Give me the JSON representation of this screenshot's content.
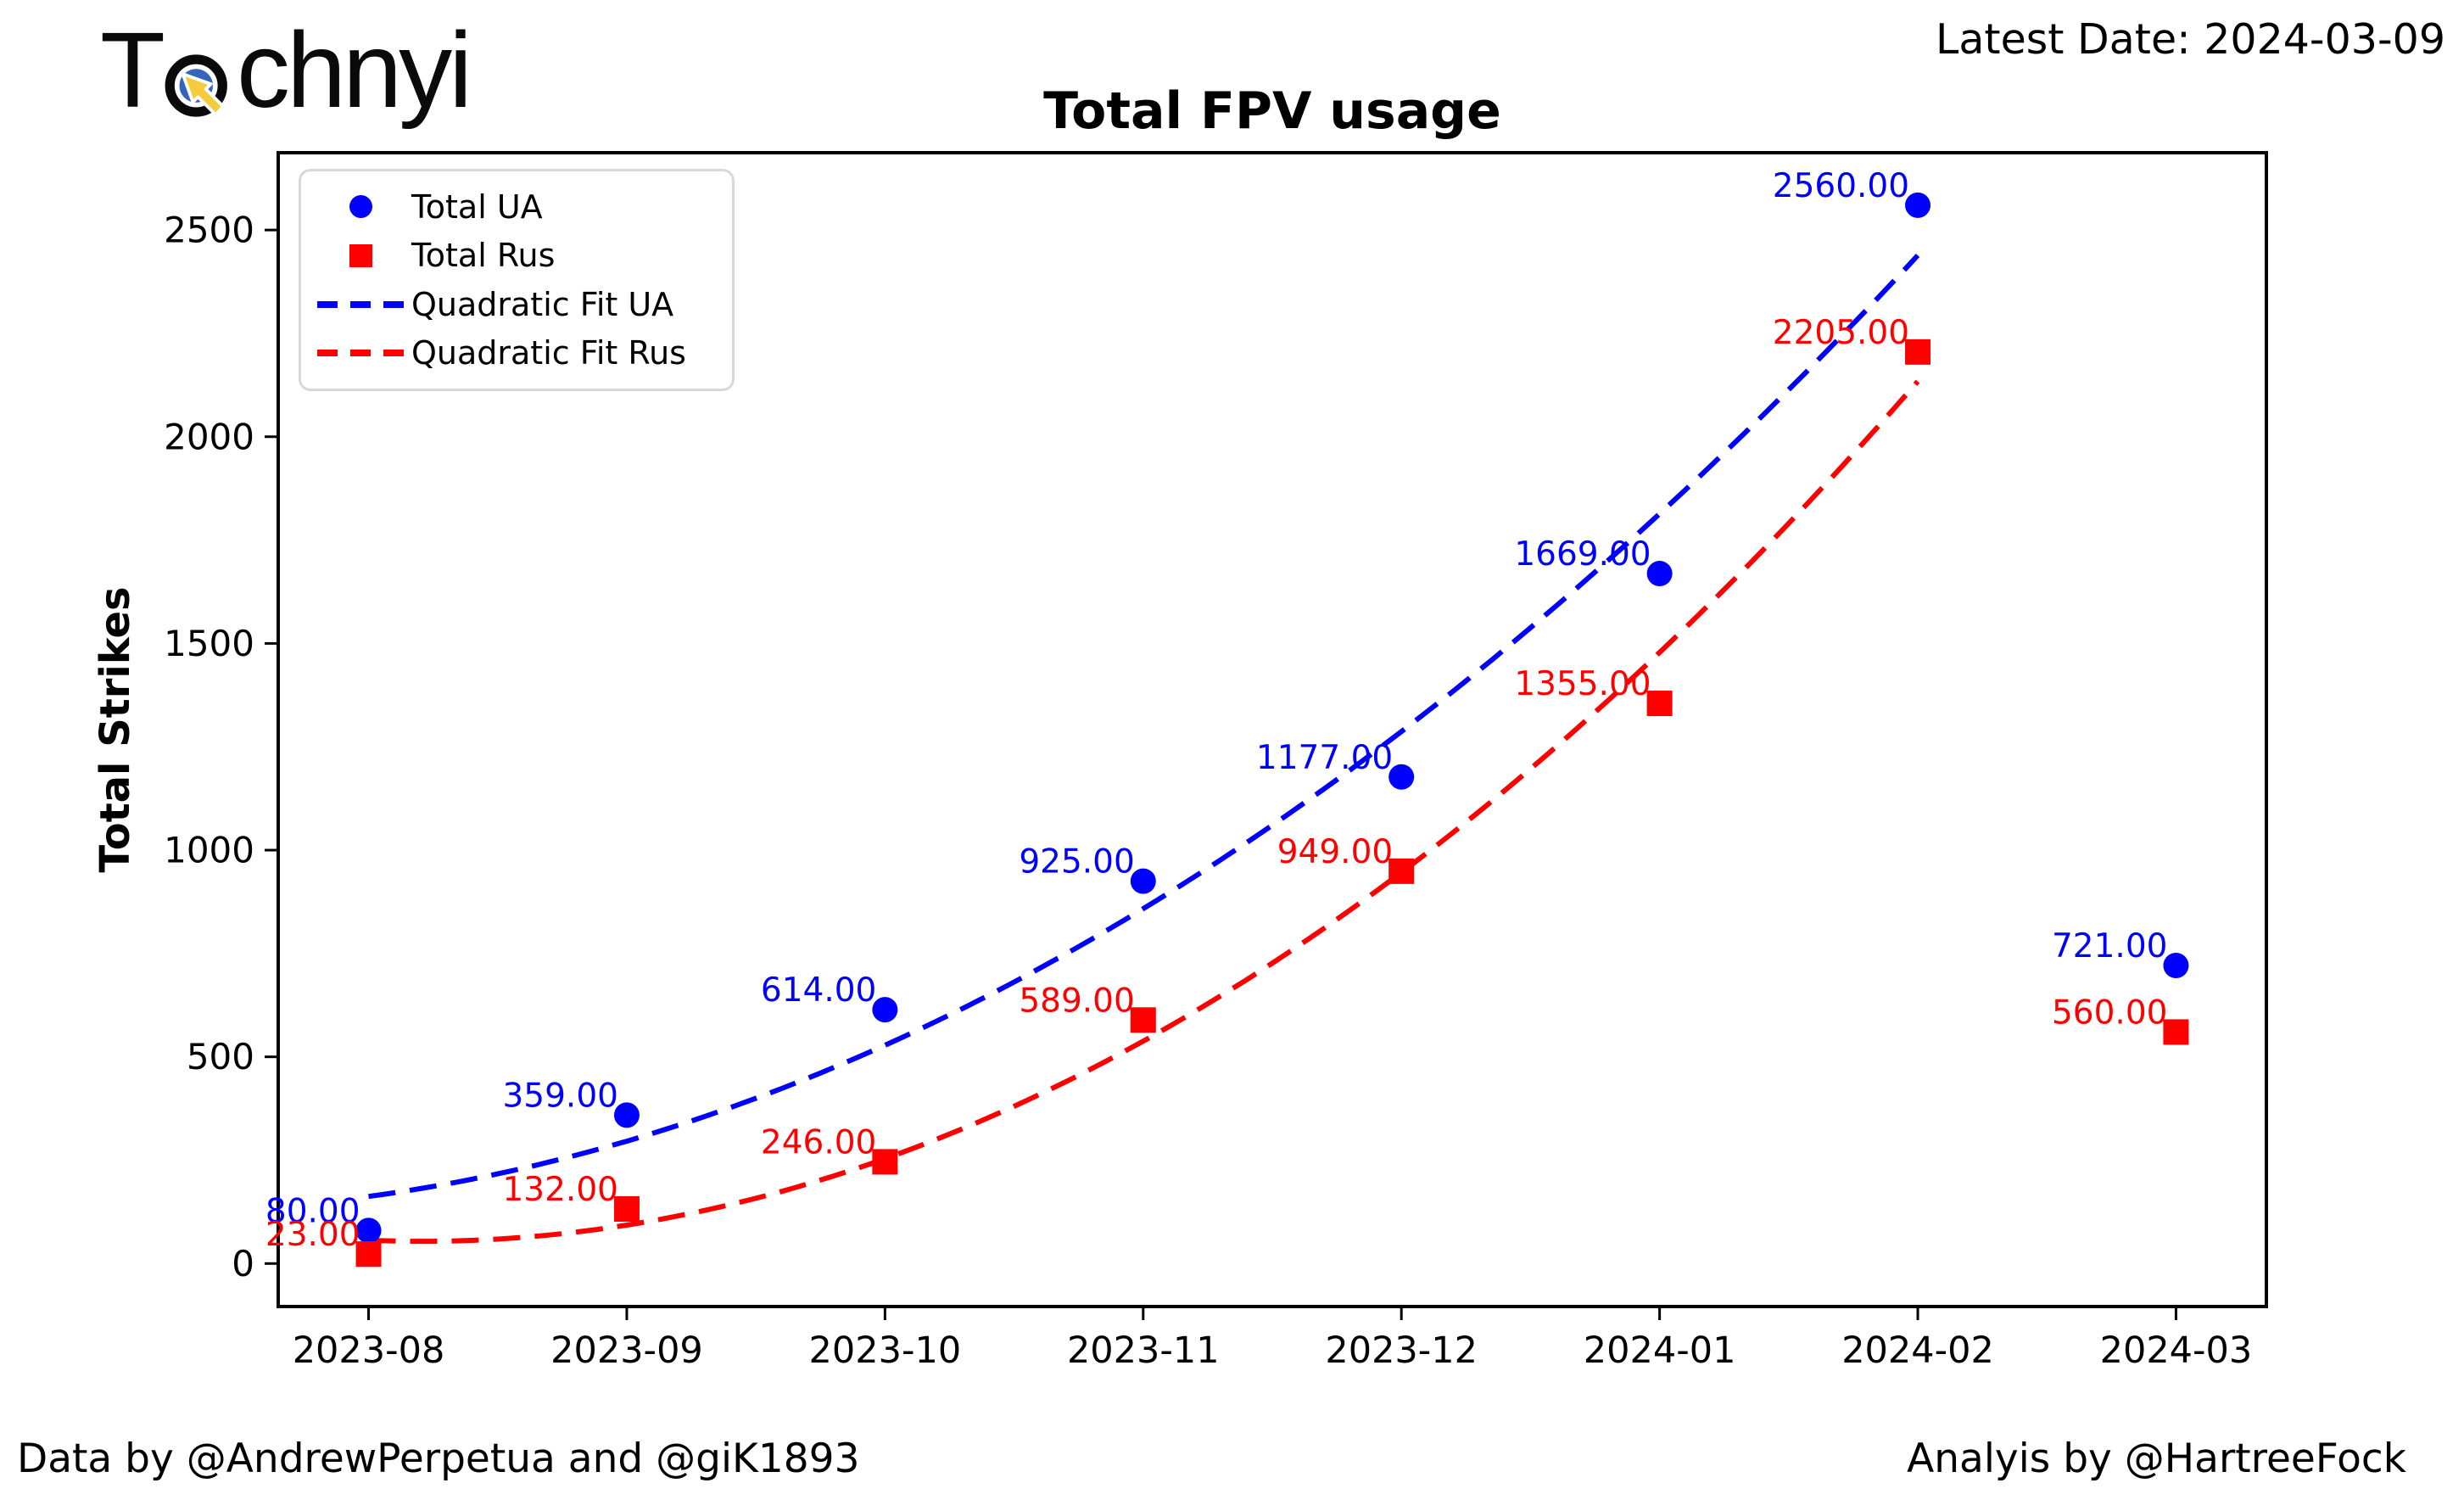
{
  "logo": {
    "text_prefix": "T",
    "text_suffix": "chnyi",
    "cursor_icon_colors": {
      "ring": "#0a0a0a",
      "disc": "#3464bc",
      "arrow": "#f5cc40"
    }
  },
  "header": {
    "latest_date": "Latest Date: 2024-03-09"
  },
  "chart_data": {
    "type": "scatter",
    "title": "Total FPV usage",
    "xlabel": "",
    "ylabel": "Total Strikes",
    "categories": [
      "2023-08",
      "2023-09",
      "2023-10",
      "2023-11",
      "2023-12",
      "2024-01",
      "2024-02",
      "2024-03"
    ],
    "y_ticks": [
      0,
      500,
      1000,
      1500,
      2000,
      2500
    ],
    "ylim": [
      -104,
      2687
    ],
    "grid": false,
    "legend_position": "upper left",
    "point_label_decimals": 2,
    "series": [
      {
        "name": "Total UA",
        "marker": "circle",
        "color": "#0000ff",
        "values": [
          80,
          359,
          614,
          925,
          1177,
          1669,
          2560,
          721
        ]
      },
      {
        "name": "Total Rus",
        "marker": "square",
        "color": "#ff0000",
        "values": [
          23,
          132,
          246,
          589,
          949,
          1355,
          2205,
          560
        ]
      }
    ],
    "fits": [
      {
        "name": "Quadratic Fit UA",
        "color": "#0000ff",
        "style": "dashed",
        "points_used": 7,
        "span_months": [
          0,
          6
        ]
      },
      {
        "name": "Quadratic Fit Rus",
        "color": "#ff0000",
        "style": "dashed",
        "points_used": 7,
        "span_months": [
          0,
          6
        ]
      }
    ]
  },
  "footer": {
    "left": "Data by @AndrewPerpetua and @giK1893",
    "right": "Analyis by @HartreeFock"
  }
}
